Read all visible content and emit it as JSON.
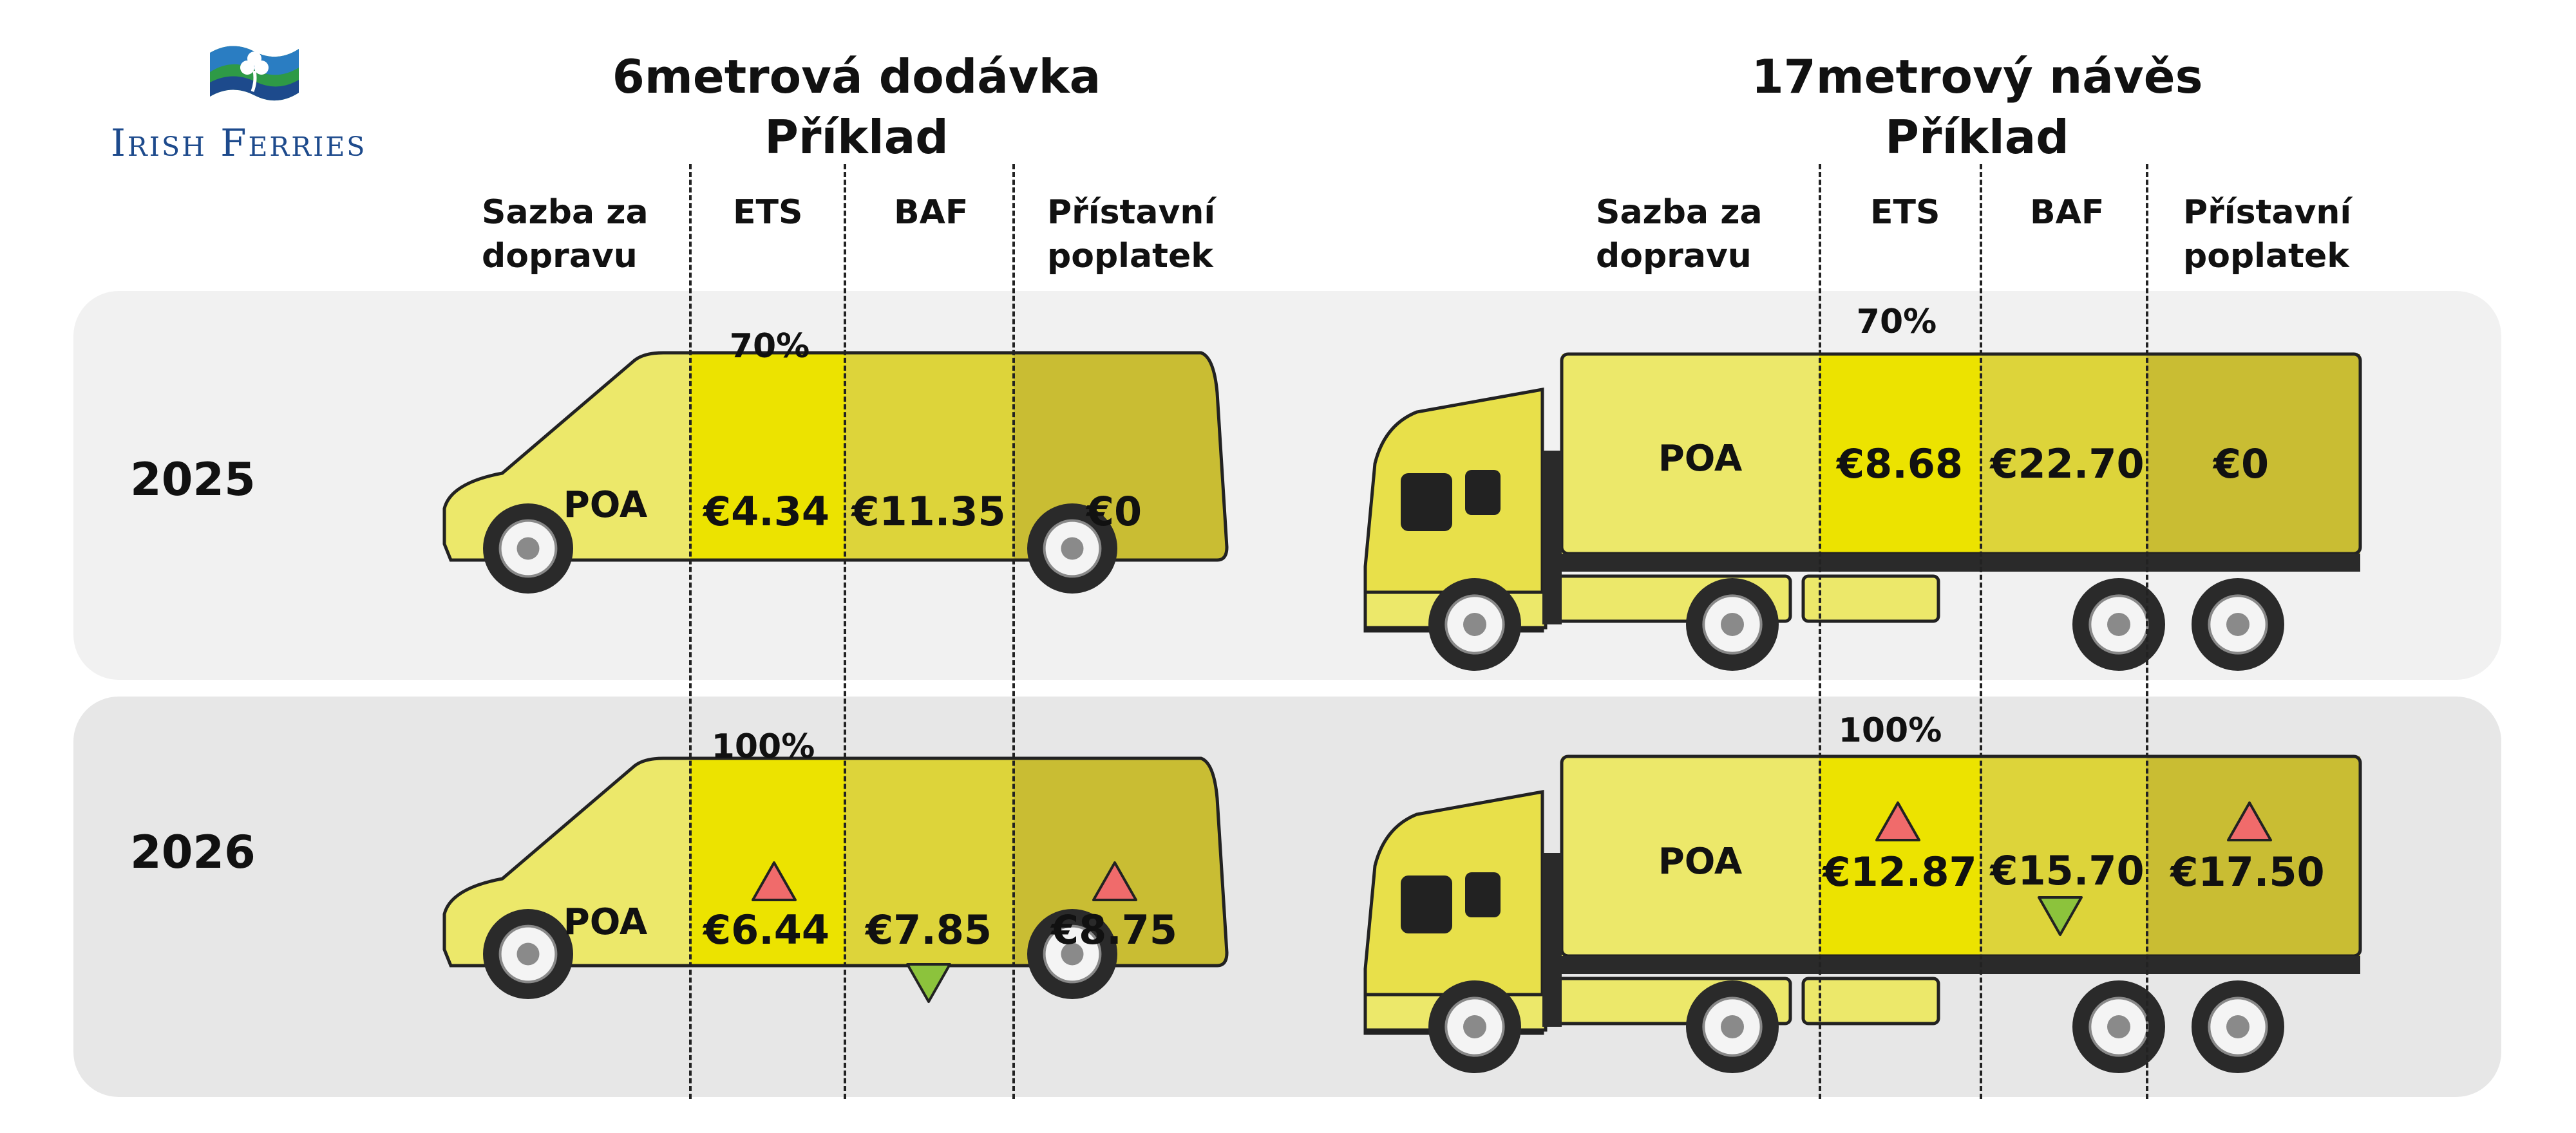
{
  "brand": {
    "name": "Irish Ferries"
  },
  "sections": {
    "van": {
      "title_line1": "6metrová dodávka",
      "title_line2": "Příklad"
    },
    "trailer": {
      "title_line1": "17metrový návěs",
      "title_line2": "Příklad"
    }
  },
  "columns": {
    "freight_line1": "Sazba za",
    "freight_line2": "dopravu",
    "ets": "ETS",
    "baf": "BAF",
    "port_line1": "Přístavní",
    "port_line2": "poplatek"
  },
  "rows": [
    {
      "year": "2025",
      "van": {
        "ets_share": "70%",
        "freight": "POA",
        "ets": "€4.34",
        "baf": "€11.35",
        "port": "€0"
      },
      "trailer": {
        "ets_share": "70%",
        "freight": "POA",
        "ets": "€8.68",
        "baf": "€22.70",
        "port": "€0"
      }
    },
    {
      "year": "2026",
      "van": {
        "ets_share": "100%",
        "freight": "POA",
        "ets": "€6.44",
        "baf": "€7.85",
        "port": "€8.75",
        "ets_trend": "up",
        "baf_trend": "down",
        "port_trend": "up"
      },
      "trailer": {
        "ets_share": "100%",
        "freight": "POA",
        "ets": "€12.87",
        "baf": "€15.70",
        "port": "€17.50",
        "ets_trend": "up",
        "baf_trend": "down",
        "port_trend": "up"
      }
    }
  ],
  "colors": {
    "freight_yellow": "#ece86a",
    "ets_yellow": "#ece300",
    "baf_yellow": "#ddd43a",
    "port_yellow": "#c9bd33",
    "increase_red": "#f06b6b",
    "decrease_green": "#8cc33c",
    "brand_blue": "#1d4a8c",
    "brand_green": "#2e9a46"
  },
  "icons": {
    "increase": "triangle-up-icon",
    "decrease": "triangle-down-icon"
  }
}
